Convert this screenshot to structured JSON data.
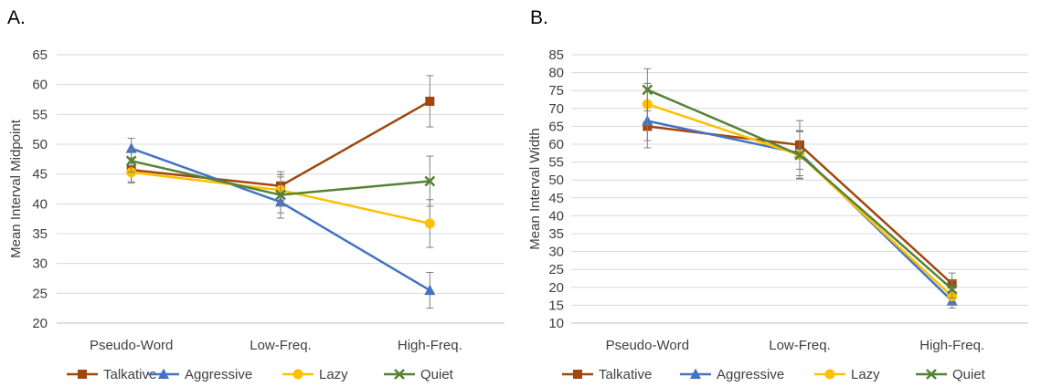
{
  "chart_data": [
    {
      "panel_label": "A.",
      "type": "line",
      "categories": [
        "Pseudo-Word",
        "Low-Freq.",
        "High-Freq."
      ],
      "ylabel": "Mean Interval Midpoint",
      "xlabel": "",
      "ylim": [
        20,
        65
      ],
      "ytick_step": 5,
      "grid": true,
      "legend_position": "bottom",
      "series": [
        {
          "name": "Talkative",
          "color": "#A0470F",
          "marker": "square",
          "values": [
            45.7,
            43.0,
            57.2
          ],
          "errors": [
            2.0,
            2.4,
            4.3
          ]
        },
        {
          "name": "Aggressive",
          "color": "#4472C4",
          "marker": "triangle",
          "values": [
            49.3,
            40.3,
            25.5
          ],
          "errors": [
            1.7,
            2.7,
            3.0
          ]
        },
        {
          "name": "Lazy",
          "color": "#FFC000",
          "marker": "circle",
          "values": [
            45.3,
            42.3,
            36.7
          ],
          "errors": [
            1.8,
            2.6,
            4.0
          ]
        },
        {
          "name": "Quiet",
          "color": "#548235",
          "marker": "x",
          "values": [
            47.2,
            41.5,
            43.8
          ],
          "errors": [
            1.9,
            3.0,
            4.2
          ]
        }
      ]
    },
    {
      "panel_label": "B.",
      "type": "line",
      "categories": [
        "Pseudo-Word",
        "Low-Freq.",
        "High-Freq."
      ],
      "ylabel": "Mean Interval Width",
      "xlabel": "",
      "ylim": [
        10,
        85
      ],
      "ytick_step": 5,
      "grid": true,
      "legend_position": "bottom",
      "series": [
        {
          "name": "Talkative",
          "color": "#A0470F",
          "marker": "square",
          "values": [
            65.0,
            59.8,
            21.0
          ],
          "errors": [
            6.0,
            6.8,
            3.0
          ]
        },
        {
          "name": "Aggressive",
          "color": "#4472C4",
          "marker": "triangle",
          "values": [
            66.5,
            57.5,
            16.2
          ],
          "errors": [
            5.5,
            6.3,
            2.0
          ]
        },
        {
          "name": "Lazy",
          "color": "#FFC000",
          "marker": "circle",
          "values": [
            71.2,
            57.0,
            17.5
          ],
          "errors": [
            5.8,
            6.5,
            2.2
          ]
        },
        {
          "name": "Quiet",
          "color": "#548235",
          "marker": "x",
          "values": [
            75.2,
            57.0,
            19.5
          ],
          "errors": [
            5.9,
            6.7,
            2.5
          ]
        }
      ]
    }
  ]
}
